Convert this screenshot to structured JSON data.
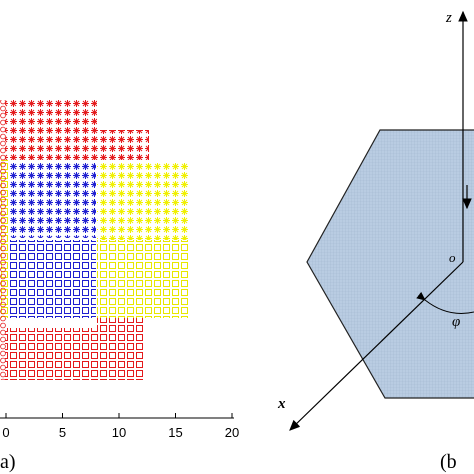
{
  "panel_a": {
    "label": "a)",
    "xlim": [
      0,
      20
    ],
    "xticks": [
      0,
      5,
      10,
      15,
      20
    ]
  },
  "panel_b": {
    "label": "(b",
    "z_label": "z",
    "x_label": "x",
    "origin_label": "o",
    "angle_label": "φ"
  }
}
